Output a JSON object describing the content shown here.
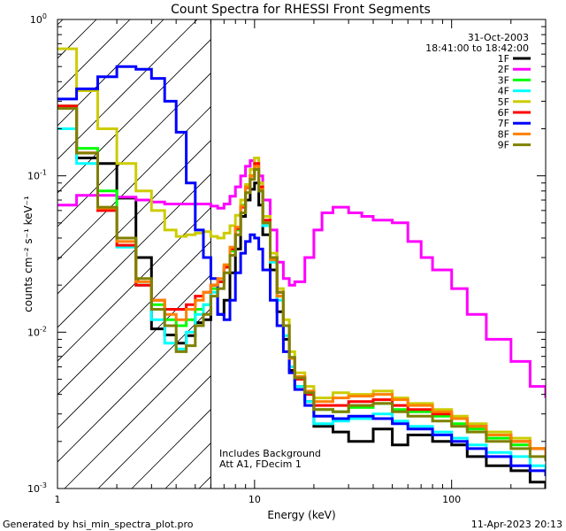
{
  "chart_data": {
    "type": "line",
    "title": "Count Spectra for RHESSI Front Segments",
    "xlabel": "Energy (keV)",
    "ylabel": "counts cm⁻² s⁻¹ keV⁻¹",
    "xscale": "log",
    "yscale": "log",
    "xlim": [
      1,
      300
    ],
    "ylim": [
      0.001,
      1
    ],
    "x_tick_labels": [
      "1",
      "10",
      "100"
    ],
    "y_tick_labels": [
      "10⁻³",
      "10⁻²",
      "10⁻¹",
      "10⁰"
    ],
    "date": "31-Oct-2003",
    "time_range": "18:41:00 to 18:42:00",
    "legend_position": "top-right",
    "annotation_lines": [
      "Includes Background",
      "Att A1, FDecim 1"
    ],
    "shaded_region_note": "hatched region below low-energy cutoff",
    "cutoff_energy": 6,
    "footer_left": "Generated by hsi_min_spectra_plot.pro",
    "footer_right": "11-Apr-2023 20:13",
    "series": [
      {
        "name": "1F",
        "color": "#000000",
        "x": [
          1.0,
          1.25,
          1.6,
          2.0,
          2.5,
          3.0,
          3.5,
          4.0,
          4.5,
          5.0,
          5.5,
          6.0,
          6.5,
          7.0,
          7.5,
          8.0,
          8.5,
          9.0,
          9.5,
          10.0,
          10.5,
          11.0,
          12.0,
          13.0,
          14.0,
          15.0,
          16.0,
          18.0,
          20.0,
          25.0,
          30.0,
          40.0,
          50.0,
          60.0,
          80.0,
          100.0,
          120.0,
          150.0,
          200.0,
          250.0,
          300.0
        ],
        "y": [
          0.27,
          0.13,
          0.12,
          0.072,
          0.03,
          0.0105,
          0.0096,
          0.0085,
          0.0095,
          0.0115,
          0.012,
          0.02,
          0.013,
          0.016,
          0.024,
          0.034,
          0.055,
          0.07,
          0.082,
          0.09,
          0.065,
          0.042,
          0.025,
          0.0135,
          0.009,
          0.0057,
          0.0045,
          0.0036,
          0.0025,
          0.0023,
          0.002,
          0.0024,
          0.0019,
          0.0022,
          0.002,
          0.0019,
          0.0016,
          0.0014,
          0.0013,
          0.0011,
          0.001
        ]
      },
      {
        "name": "2F",
        "color": "#ff00ff",
        "x": [
          1.0,
          1.25,
          1.6,
          2.0,
          2.5,
          3.0,
          3.5,
          4.0,
          4.5,
          5.0,
          5.5,
          6.0,
          6.5,
          7.0,
          7.5,
          8.0,
          8.5,
          9.0,
          9.5,
          10.0,
          10.5,
          11.0,
          12.0,
          13.0,
          14.0,
          15.0,
          16.0,
          18.0,
          20.0,
          22.0,
          25.0,
          30.0,
          35.0,
          40.0,
          50.0,
          60.0,
          70.0,
          80.0,
          100.0,
          120.0,
          150.0,
          200.0,
          250.0,
          300.0
        ],
        "y": [
          0.065,
          0.075,
          0.075,
          0.073,
          0.07,
          0.068,
          0.066,
          0.066,
          0.066,
          0.066,
          0.066,
          0.064,
          0.062,
          0.066,
          0.074,
          0.085,
          0.1,
          0.115,
          0.125,
          0.13,
          0.1,
          0.07,
          0.045,
          0.028,
          0.022,
          0.02,
          0.021,
          0.03,
          0.045,
          0.058,
          0.063,
          0.058,
          0.055,
          0.052,
          0.05,
          0.038,
          0.03,
          0.025,
          0.019,
          0.013,
          0.009,
          0.0065,
          0.0045,
          0.0038
        ]
      },
      {
        "name": "3F",
        "color": "#00ff00",
        "x": [
          1.0,
          1.25,
          1.6,
          2.0,
          2.5,
          3.0,
          3.5,
          4.0,
          4.5,
          5.0,
          5.5,
          6.0,
          6.5,
          7.0,
          7.5,
          8.0,
          8.5,
          9.0,
          9.5,
          10.0,
          10.5,
          11.0,
          12.0,
          13.0,
          14.0,
          15.0,
          16.0,
          18.0,
          20.0,
          25.0,
          30.0,
          40.0,
          50.0,
          60.0,
          80.0,
          100.0,
          120.0,
          150.0,
          200.0,
          250.0,
          300.0
        ],
        "y": [
          0.28,
          0.15,
          0.08,
          0.04,
          0.02,
          0.015,
          0.012,
          0.011,
          0.012,
          0.014,
          0.015,
          0.019,
          0.021,
          0.026,
          0.033,
          0.045,
          0.065,
          0.085,
          0.1,
          0.11,
          0.08,
          0.05,
          0.03,
          0.017,
          0.011,
          0.0068,
          0.005,
          0.004,
          0.0032,
          0.0031,
          0.0033,
          0.0035,
          0.0032,
          0.0031,
          0.0029,
          0.0026,
          0.0024,
          0.0021,
          0.0019,
          0.0018,
          0.0016
        ]
      },
      {
        "name": "4F",
        "color": "#00ffff",
        "x": [
          1.0,
          1.25,
          1.6,
          2.0,
          2.5,
          3.0,
          3.5,
          4.0,
          4.5,
          5.0,
          5.5,
          6.0,
          6.5,
          7.0,
          7.5,
          8.0,
          8.5,
          9.0,
          9.5,
          10.0,
          10.5,
          11.0,
          12.0,
          13.0,
          14.0,
          15.0,
          16.0,
          18.0,
          20.0,
          25.0,
          30.0,
          40.0,
          50.0,
          60.0,
          80.0,
          100.0,
          120.0,
          150.0,
          200.0,
          250.0,
          300.0
        ],
        "y": [
          0.2,
          0.12,
          0.06,
          0.035,
          0.02,
          0.012,
          0.0085,
          0.0078,
          0.01,
          0.013,
          0.015,
          0.018,
          0.021,
          0.026,
          0.034,
          0.046,
          0.064,
          0.085,
          0.1,
          0.11,
          0.08,
          0.048,
          0.028,
          0.016,
          0.0095,
          0.006,
          0.0045,
          0.0036,
          0.0026,
          0.0027,
          0.0028,
          0.003,
          0.0027,
          0.0025,
          0.0023,
          0.0021,
          0.0019,
          0.0017,
          0.0016,
          0.0014,
          0.0013
        ]
      },
      {
        "name": "5F",
        "color": "#cccc00",
        "x": [
          1.0,
          1.25,
          1.6,
          2.0,
          2.5,
          3.0,
          3.5,
          4.0,
          4.5,
          5.0,
          5.5,
          6.0,
          6.5,
          7.0,
          7.5,
          8.0,
          8.5,
          9.0,
          9.5,
          10.0,
          10.5,
          11.0,
          12.0,
          13.0,
          14.0,
          15.0,
          16.0,
          18.0,
          20.0,
          25.0,
          30.0,
          40.0,
          50.0,
          60.0,
          80.0,
          100.0,
          120.0,
          150.0,
          200.0,
          250.0,
          300.0
        ],
        "y": [
          0.65,
          0.35,
          0.2,
          0.12,
          0.08,
          0.06,
          0.045,
          0.041,
          0.042,
          0.043,
          0.044,
          0.041,
          0.04,
          0.043,
          0.048,
          0.056,
          0.07,
          0.088,
          0.11,
          0.13,
          0.09,
          0.055,
          0.032,
          0.019,
          0.012,
          0.0075,
          0.0055,
          0.0045,
          0.0038,
          0.0041,
          0.004,
          0.0042,
          0.0038,
          0.0035,
          0.0032,
          0.0029,
          0.0026,
          0.0023,
          0.0021,
          0.0018,
          0.0016
        ]
      },
      {
        "name": "6F",
        "color": "#ff0000",
        "x": [
          1.0,
          1.25,
          1.6,
          2.0,
          2.5,
          3.0,
          3.5,
          4.0,
          4.5,
          5.0,
          5.5,
          6.0,
          6.5,
          7.0,
          7.5,
          8.0,
          8.5,
          9.0,
          9.5,
          10.0,
          10.5,
          11.0,
          12.0,
          13.0,
          14.0,
          15.0,
          16.0,
          18.0,
          20.0,
          25.0,
          30.0,
          40.0,
          50.0,
          60.0,
          80.0,
          100.0,
          120.0,
          150.0,
          200.0,
          250.0,
          300.0
        ],
        "y": [
          0.28,
          0.14,
          0.06,
          0.036,
          0.02,
          0.016,
          0.014,
          0.014,
          0.015,
          0.017,
          0.018,
          0.02,
          0.021,
          0.026,
          0.034,
          0.046,
          0.063,
          0.084,
          0.1,
          0.12,
          0.085,
          0.052,
          0.03,
          0.018,
          0.011,
          0.0068,
          0.005,
          0.004,
          0.0034,
          0.0034,
          0.0036,
          0.0037,
          0.0034,
          0.0032,
          0.003,
          0.0028,
          0.0025,
          0.0022,
          0.002,
          0.0018,
          0.0016
        ]
      },
      {
        "name": "7F",
        "color": "#0000ff",
        "x": [
          1.0,
          1.25,
          1.6,
          2.0,
          2.5,
          3.0,
          3.5,
          4.0,
          4.5,
          5.0,
          5.5,
          6.0,
          6.5,
          7.0,
          7.5,
          8.0,
          8.5,
          9.0,
          9.5,
          10.0,
          10.5,
          11.0,
          12.0,
          13.0,
          14.0,
          15.0,
          16.0,
          18.0,
          20.0,
          25.0,
          30.0,
          40.0,
          50.0,
          60.0,
          80.0,
          100.0,
          120.0,
          150.0,
          200.0,
          250.0,
          300.0
        ],
        "y": [
          0.31,
          0.36,
          0.43,
          0.5,
          0.48,
          0.42,
          0.3,
          0.19,
          0.09,
          0.045,
          0.03,
          0.022,
          0.013,
          0.012,
          0.016,
          0.024,
          0.032,
          0.038,
          0.042,
          0.04,
          0.034,
          0.025,
          0.016,
          0.011,
          0.0075,
          0.0055,
          0.0043,
          0.0034,
          0.0029,
          0.0028,
          0.0029,
          0.0028,
          0.0026,
          0.0024,
          0.0022,
          0.002,
          0.0018,
          0.0016,
          0.0014,
          0.0013,
          0.0012
        ]
      },
      {
        "name": "8F",
        "color": "#ff8000",
        "x": [
          1.0,
          1.25,
          1.6,
          2.0,
          2.5,
          3.0,
          3.5,
          4.0,
          4.5,
          5.0,
          5.5,
          6.0,
          6.5,
          7.0,
          7.5,
          8.0,
          8.5,
          9.0,
          9.5,
          10.0,
          10.5,
          11.0,
          12.0,
          13.0,
          14.0,
          15.0,
          16.0,
          18.0,
          20.0,
          25.0,
          30.0,
          40.0,
          50.0,
          60.0,
          80.0,
          100.0,
          120.0,
          150.0,
          200.0,
          250.0,
          300.0
        ],
        "y": [
          0.27,
          0.14,
          0.062,
          0.038,
          0.021,
          0.016,
          0.013,
          0.012,
          0.014,
          0.016,
          0.018,
          0.02,
          0.022,
          0.027,
          0.035,
          0.047,
          0.064,
          0.085,
          0.1,
          0.115,
          0.082,
          0.05,
          0.029,
          0.017,
          0.011,
          0.0068,
          0.0052,
          0.0042,
          0.0036,
          0.0038,
          0.0039,
          0.004,
          0.0037,
          0.0034,
          0.0031,
          0.0028,
          0.0025,
          0.0022,
          0.002,
          0.0018,
          0.0016
        ]
      },
      {
        "name": "9F",
        "color": "#808000",
        "x": [
          1.0,
          1.25,
          1.6,
          2.0,
          2.5,
          3.0,
          3.5,
          4.0,
          4.5,
          5.0,
          5.5,
          6.0,
          6.5,
          7.0,
          7.5,
          8.0,
          8.5,
          9.0,
          9.5,
          10.0,
          10.5,
          11.0,
          12.0,
          13.0,
          14.0,
          15.0,
          16.0,
          18.0,
          20.0,
          25.0,
          30.0,
          40.0,
          50.0,
          60.0,
          80.0,
          100.0,
          120.0,
          150.0,
          200.0,
          250.0,
          300.0
        ],
        "y": [
          0.27,
          0.14,
          0.063,
          0.04,
          0.022,
          0.014,
          0.011,
          0.0075,
          0.0082,
          0.011,
          0.013,
          0.017,
          0.019,
          0.024,
          0.031,
          0.042,
          0.058,
          0.078,
          0.095,
          0.11,
          0.08,
          0.05,
          0.03,
          0.018,
          0.011,
          0.0069,
          0.0051,
          0.0041,
          0.0032,
          0.0031,
          0.0034,
          0.0035,
          0.0031,
          0.0029,
          0.0027,
          0.0025,
          0.0023,
          0.002,
          0.0018,
          0.0016,
          0.0015
        ]
      }
    ]
  }
}
